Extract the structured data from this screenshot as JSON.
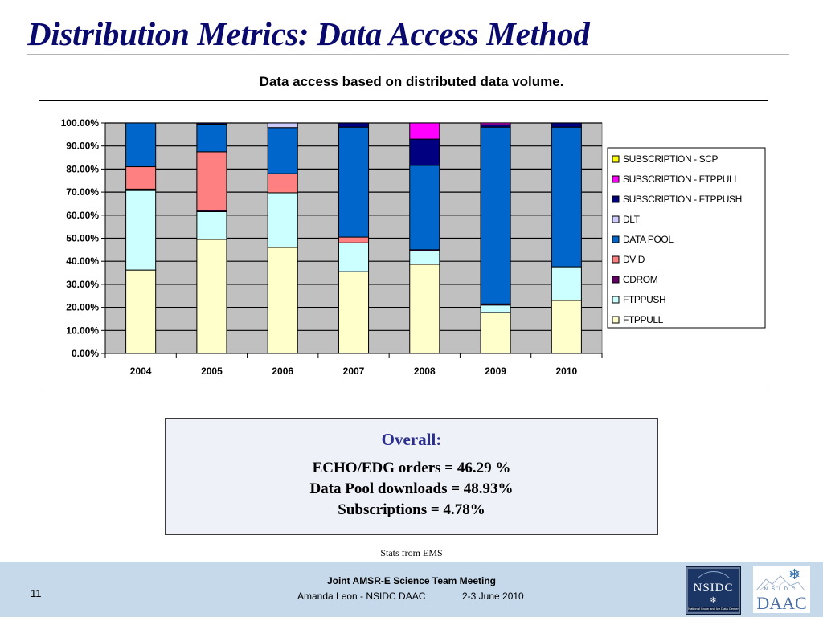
{
  "slide": {
    "title": "Distribution Metrics: Data Access Method",
    "chart_heading": "Data access based on distributed data volume.",
    "summary": {
      "title": "Overall:",
      "lines": [
        "ECHO/EDG orders = 46.29 %",
        "Data Pool downloads = 48.93%",
        "Subscriptions = 4.78%"
      ]
    },
    "source_note": "Stats from EMS",
    "footer": {
      "slide_number": "11",
      "meeting": "Joint AMSR-E Science Team Meeting",
      "author": "Amanda Leon - NSIDC DAAC",
      "date": "2-3 June 2010"
    },
    "logos": {
      "nsidc_text": "NSIDC",
      "nsidc_tagline": "National Snow and Ice Data Center",
      "daac_small": "NSIDC",
      "daac_big": "DAAC"
    }
  },
  "chart_data": {
    "type": "bar",
    "stacked": true,
    "percent_stacked": true,
    "title": "Data access based on distributed data volume.",
    "xlabel": "",
    "ylabel": "",
    "ylim": [
      0,
      100
    ],
    "yticks": [
      "0.00%",
      "10.00%",
      "20.00%",
      "30.00%",
      "40.00%",
      "50.00%",
      "60.00%",
      "70.00%",
      "80.00%",
      "90.00%",
      "100.00%"
    ],
    "grid": true,
    "plot_background": "#c0c0c0",
    "legend_position": "right",
    "categories": [
      "2004",
      "2005",
      "2006",
      "2007",
      "2008",
      "2009",
      "2010"
    ],
    "series": [
      {
        "name": "FTPPULL",
        "color": "#ffffcc",
        "values": [
          36.2,
          49.5,
          46.0,
          35.5,
          38.7,
          17.8,
          23.0
        ]
      },
      {
        "name": "FTPPUSH",
        "color": "#ccffff",
        "values": [
          34.5,
          12.0,
          23.7,
          12.5,
          5.8,
          3.2,
          14.6
        ]
      },
      {
        "name": "CDROM",
        "color": "#660066",
        "values": [
          0.6,
          0.5,
          0.0,
          0.0,
          0.5,
          0.5,
          0.0
        ]
      },
      {
        "name": "DVD",
        "color": "#ff8080",
        "values": [
          9.7,
          25.5,
          8.3,
          2.5,
          0.0,
          0.0,
          0.0
        ]
      },
      {
        "name": "DATAPOOL",
        "color": "#0066cc",
        "values": [
          19.0,
          12.0,
          20.0,
          47.7,
          36.6,
          76.7,
          60.6
        ]
      },
      {
        "name": "DLT",
        "color": "#ccccff",
        "values": [
          0.0,
          0.0,
          2.0,
          0.0,
          0.0,
          0.0,
          0.0
        ]
      },
      {
        "name": "SUBSCRIPTION - FTPPUSH",
        "color": "#000080",
        "values": [
          0.0,
          0.5,
          0.0,
          1.8,
          11.4,
          1.1,
          1.8
        ]
      },
      {
        "name": "SUBSCRIPTION - FTPPULL",
        "color": "#ff00ff",
        "values": [
          0.0,
          0.0,
          0.0,
          0.0,
          7.0,
          0.7,
          0.0
        ]
      },
      {
        "name": "SUBSCRIPTION - SCP",
        "color": "#ffff00",
        "values": [
          0.0,
          0.0,
          0.0,
          0.0,
          0.0,
          0.0,
          0.0
        ]
      }
    ],
    "legend_order": [
      "SUBSCRIPTION - SCP",
      "SUBSCRIPTION - FTPPULL",
      "SUBSCRIPTION - FTPPUSH",
      "DLT",
      "DATAPOOL",
      "DVD",
      "CDROM",
      "FTPPUSH",
      "FTPPULL"
    ],
    "legend_labels": [
      "SUBSCRIPTION - SCP",
      "SUBSCRIPTION - FTPPULL",
      "SUBSCRIPTION - FTPPUSH",
      "DLT",
      "DATA POOL",
      "DV D",
      "CDROM",
      "FTPPUSH",
      "FTPPULL"
    ]
  }
}
